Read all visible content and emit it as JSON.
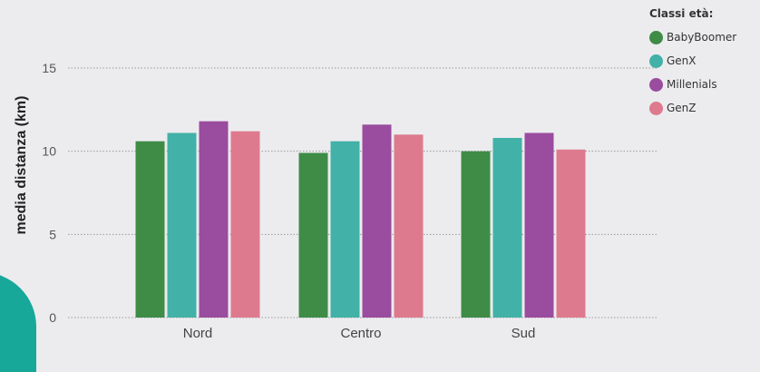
{
  "chart_data": {
    "type": "bar",
    "categories": [
      "Nord",
      "Centro",
      "Sud"
    ],
    "series": [
      {
        "name": "BabyBoomer",
        "color": "#3f8c47",
        "values": [
          10.6,
          9.9,
          10.0
        ]
      },
      {
        "name": "GenX",
        "color": "#42b1a7",
        "values": [
          11.1,
          10.6,
          10.8
        ]
      },
      {
        "name": "Millenials",
        "color": "#9a4c9e",
        "values": [
          11.8,
          11.6,
          11.1
        ]
      },
      {
        "name": "GenZ",
        "color": "#de7a8e",
        "values": [
          11.2,
          11.0,
          10.1
        ]
      }
    ],
    "ylabel": "media distanza (km)",
    "ylim": [
      0,
      18
    ],
    "yticks": [
      0,
      5,
      10,
      15
    ],
    "grid": true,
    "legend": {
      "title": "Classi età:",
      "placement": "top-right"
    }
  }
}
